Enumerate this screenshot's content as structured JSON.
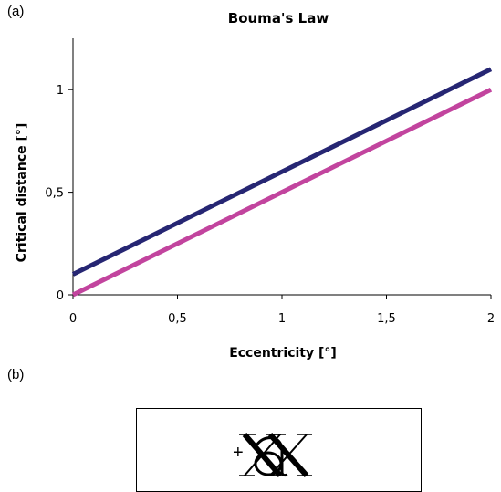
{
  "panels": {
    "a": "(a)",
    "b": "(b)"
  },
  "chart_data": {
    "type": "line",
    "title": "Bouma's Law",
    "xlabel": "Eccentricity [°]",
    "ylabel": "Critical distance [°]",
    "xlim": [
      0,
      2
    ],
    "ylim": [
      0,
      1.25
    ],
    "xticks": [
      0,
      0.5,
      1,
      1.5,
      2
    ],
    "xtick_labels": [
      "0",
      "0,5",
      "1",
      "1,5",
      "2"
    ],
    "yticks": [
      0,
      0.5,
      1
    ],
    "ytick_labels": [
      "0",
      "0,5",
      "1"
    ],
    "grid": false,
    "series": [
      {
        "x": [
          0,
          2
        ],
        "values": [
          0.1,
          1.1
        ],
        "color": "#262673"
      },
      {
        "x": [
          0,
          2
        ],
        "values": [
          0,
          1.0
        ],
        "color": "#c2449e"
      }
    ]
  },
  "stimulus": {
    "fixation": "+",
    "letters": [
      "X",
      "a",
      "X"
    ],
    "icon": "crowded-letters-icon"
  }
}
